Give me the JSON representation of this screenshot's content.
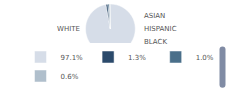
{
  "chart_data": {
    "type": "pie",
    "categories": [
      "WHITE",
      "ASIAN",
      "HISPANIC",
      "BLACK"
    ],
    "values": [
      97.1,
      1.3,
      1.0,
      0.6
    ],
    "value_labels": [
      "97.1%",
      "1.3%",
      "1.0%",
      "0.6%"
    ],
    "colors": [
      "#d6dde8",
      "#2b4a6b",
      "#4a6f8a",
      "#b0bfcc"
    ],
    "legend": "bottom"
  }
}
